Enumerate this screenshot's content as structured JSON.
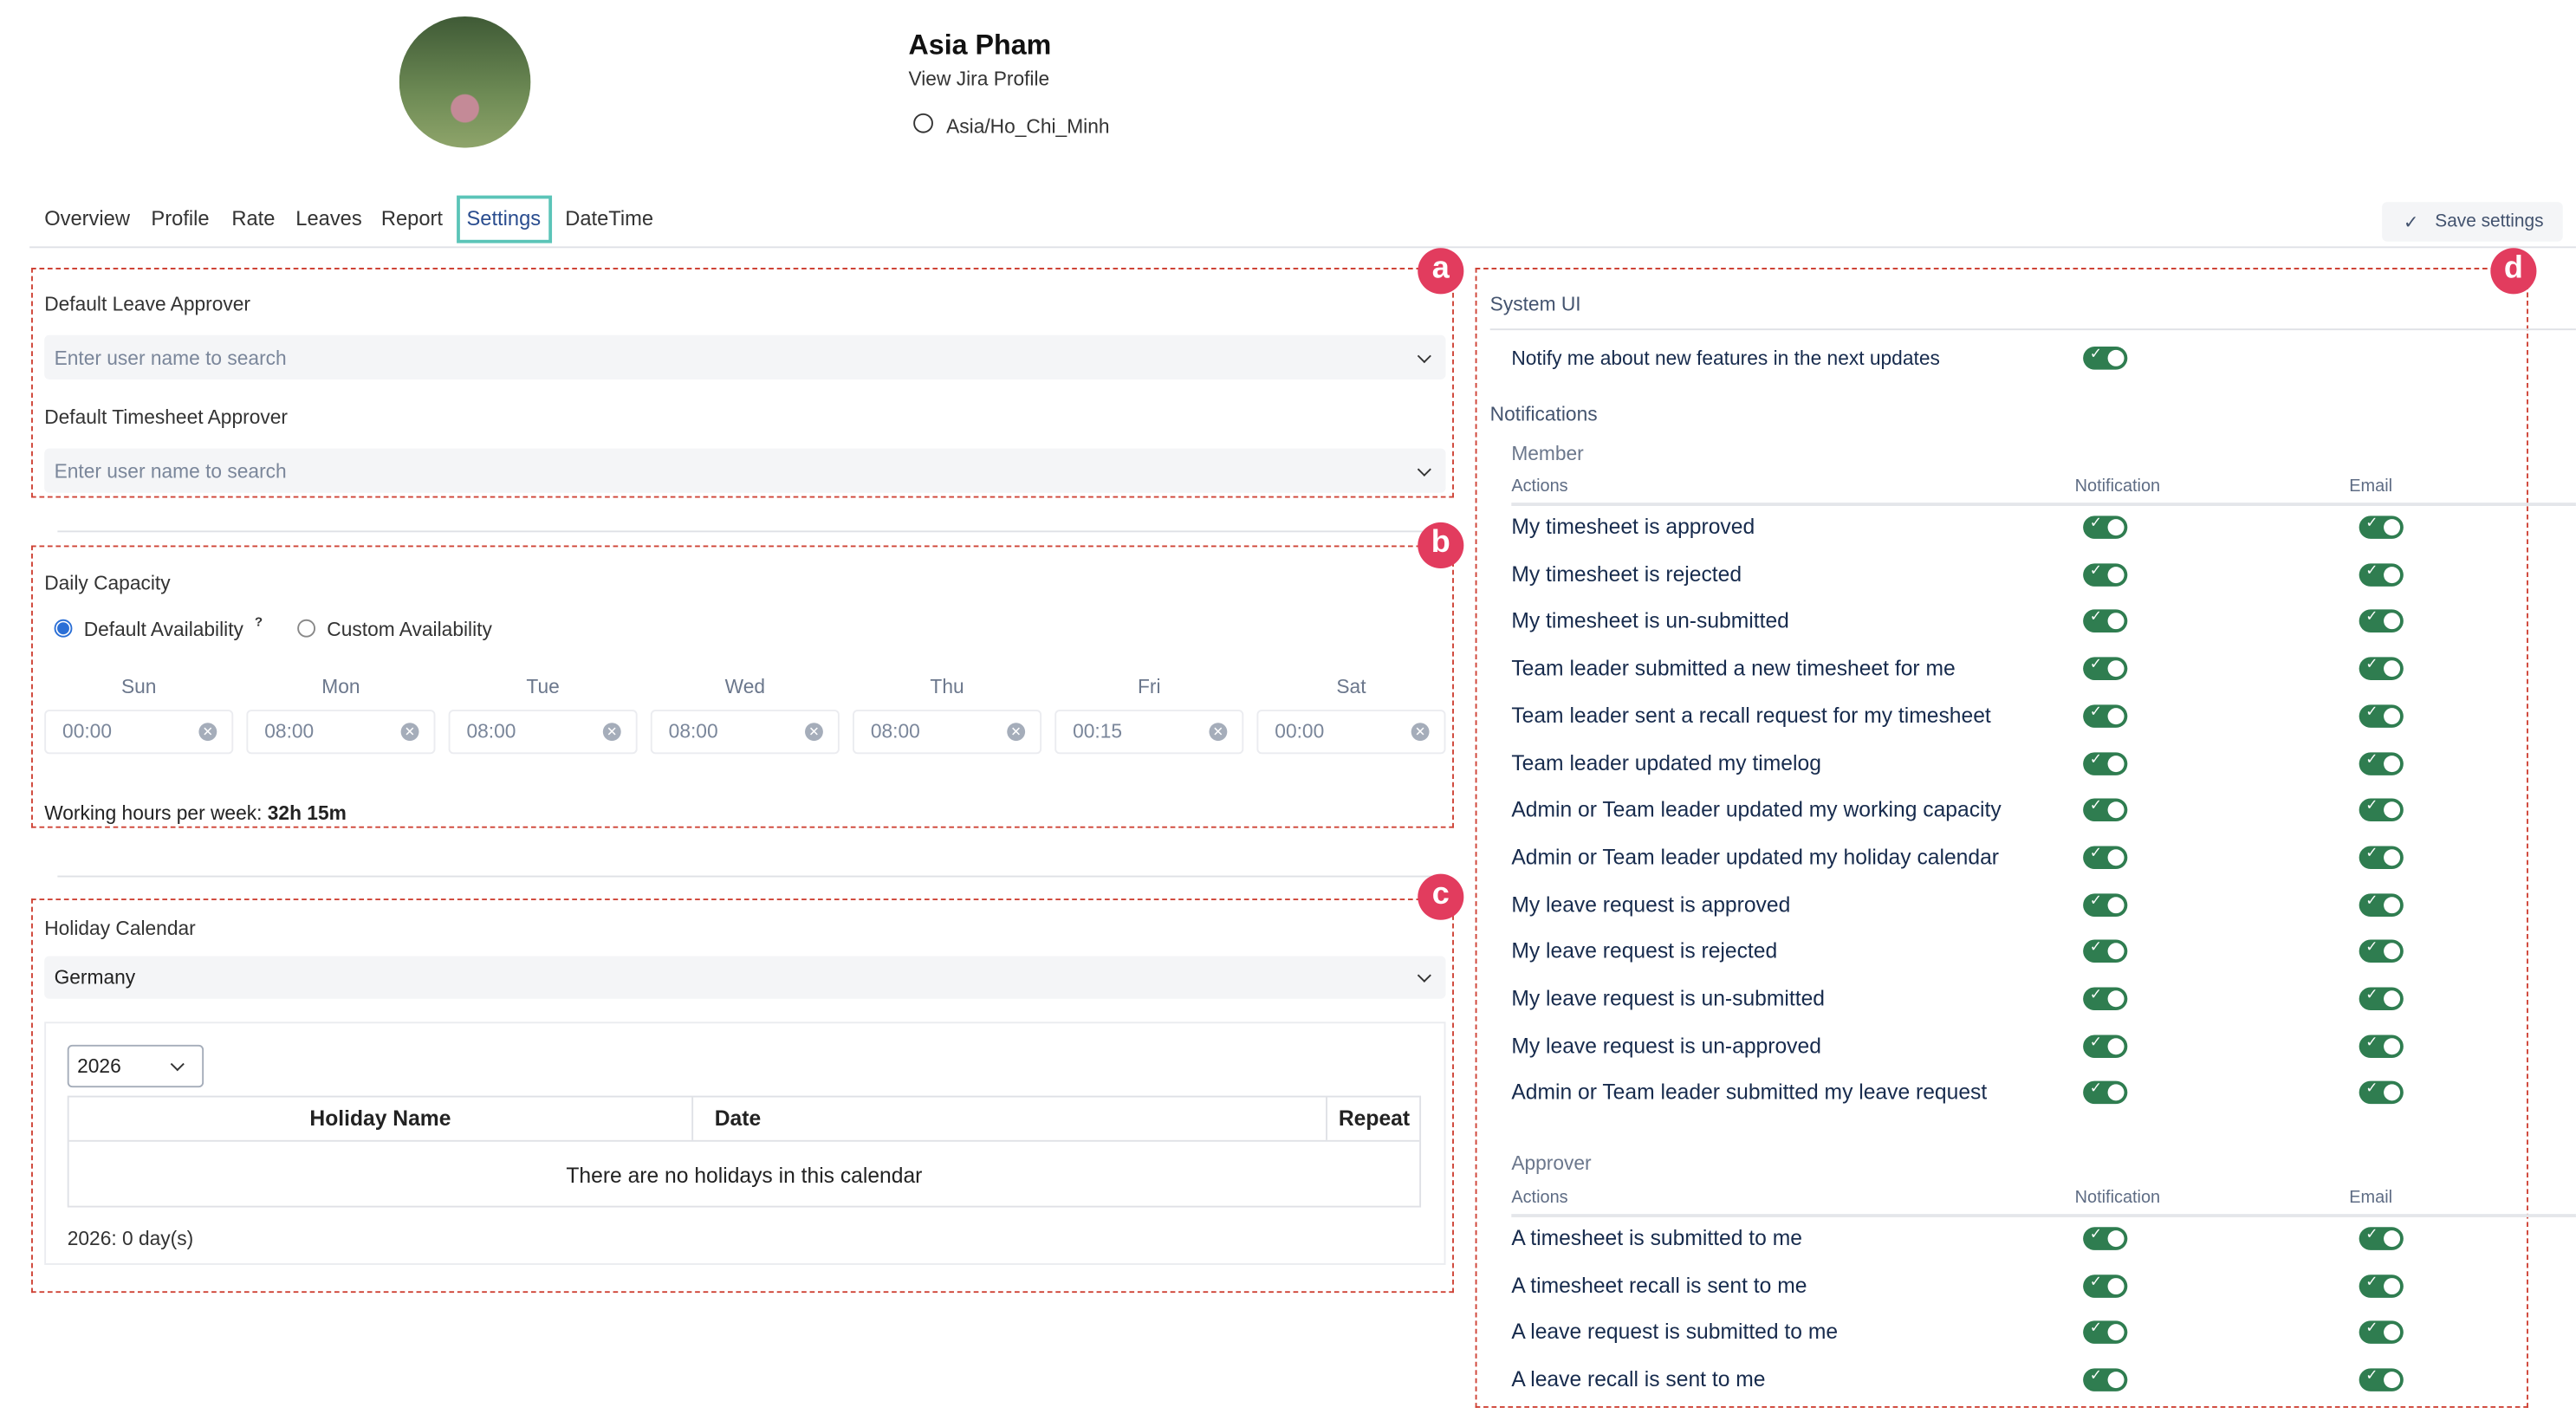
{
  "profile": {
    "name": "Asia Pham",
    "jira_link": "View Jira Profile",
    "timezone": "Asia/Ho_Chi_Minh"
  },
  "tabs": [
    {
      "label": "Overview"
    },
    {
      "label": "Profile"
    },
    {
      "label": "Rate"
    },
    {
      "label": "Leaves"
    },
    {
      "label": "Report"
    },
    {
      "label": "Settings",
      "active": true
    },
    {
      "label": "DateTime"
    }
  ],
  "toolbar": {
    "save_label": "Save settings"
  },
  "badges": {
    "a": "a",
    "b": "b",
    "c": "c",
    "d": "d"
  },
  "approvers": {
    "leave_label": "Default Leave Approver",
    "leave_placeholder": "Enter user name to search",
    "timesheet_label": "Default Timesheet Approver",
    "timesheet_placeholder": "Enter user name to search"
  },
  "capacity": {
    "title": "Daily Capacity",
    "default_option": "Default Availability",
    "help": "?",
    "custom_option": "Custom Availability",
    "selected": "Default Availability",
    "days": [
      {
        "day": "Sun",
        "value": "00:00"
      },
      {
        "day": "Mon",
        "value": "08:00"
      },
      {
        "day": "Tue",
        "value": "08:00"
      },
      {
        "day": "Wed",
        "value": "08:00"
      },
      {
        "day": "Thu",
        "value": "08:00"
      },
      {
        "day": "Fri",
        "value": "00:15"
      },
      {
        "day": "Sat",
        "value": "00:00"
      }
    ],
    "weekly_label": "Working hours per week:",
    "weekly_value": "32h 15m"
  },
  "holiday": {
    "title": "Holiday Calendar",
    "calendar": "Germany",
    "year": "2026",
    "columns": [
      "Holiday Name",
      "Date",
      "Repeat"
    ],
    "empty": "There are no holidays in this calendar",
    "summary": "2026: 0 day(s)"
  },
  "settings": {
    "system_ui": "System UI",
    "notify_features": "Notify me about new features in the next updates",
    "notifications": "Notifications",
    "member": {
      "title": "Member",
      "col_actions": "Actions",
      "col_notification": "Notification",
      "col_email": "Email",
      "rows": [
        {
          "label": "My timesheet is approved",
          "notification": true,
          "email": true
        },
        {
          "label": "My timesheet is rejected",
          "notification": true,
          "email": true
        },
        {
          "label": "My timesheet is un-submitted",
          "notification": true,
          "email": true
        },
        {
          "label": "Team leader submitted a new timesheet for me",
          "notification": true,
          "email": true
        },
        {
          "label": "Team leader sent a recall request for my timesheet",
          "notification": true,
          "email": true
        },
        {
          "label": "Team leader updated my timelog",
          "notification": true,
          "email": true
        },
        {
          "label": "Admin or Team leader updated my working capacity",
          "notification": true,
          "email": true
        },
        {
          "label": "Admin or Team leader updated my holiday calendar",
          "notification": true,
          "email": true
        },
        {
          "label": "My leave request is approved",
          "notification": true,
          "email": true
        },
        {
          "label": "My leave request is rejected",
          "notification": true,
          "email": true
        },
        {
          "label": "My leave request is un-submitted",
          "notification": true,
          "email": true
        },
        {
          "label": "My leave request is un-approved",
          "notification": true,
          "email": true
        },
        {
          "label": "Admin or Team leader submitted my leave request",
          "notification": true,
          "email": true
        }
      ]
    },
    "approver": {
      "title": "Approver",
      "col_actions": "Actions",
      "col_notification": "Notification",
      "col_email": "Email",
      "rows": [
        {
          "label": "A timesheet is submitted to me",
          "notification": true,
          "email": true
        },
        {
          "label": "A timesheet recall is sent to me",
          "notification": true,
          "email": true
        },
        {
          "label": "A leave request is submitted to me",
          "notification": true,
          "email": true
        },
        {
          "label": "A leave recall is sent to me",
          "notification": true,
          "email": true
        }
      ]
    }
  },
  "colors": {
    "accent_tab": "#5bc4b8",
    "toggle_on": "#2f7d50",
    "annotation": "#cf4336",
    "badge": "#e23c5e"
  }
}
